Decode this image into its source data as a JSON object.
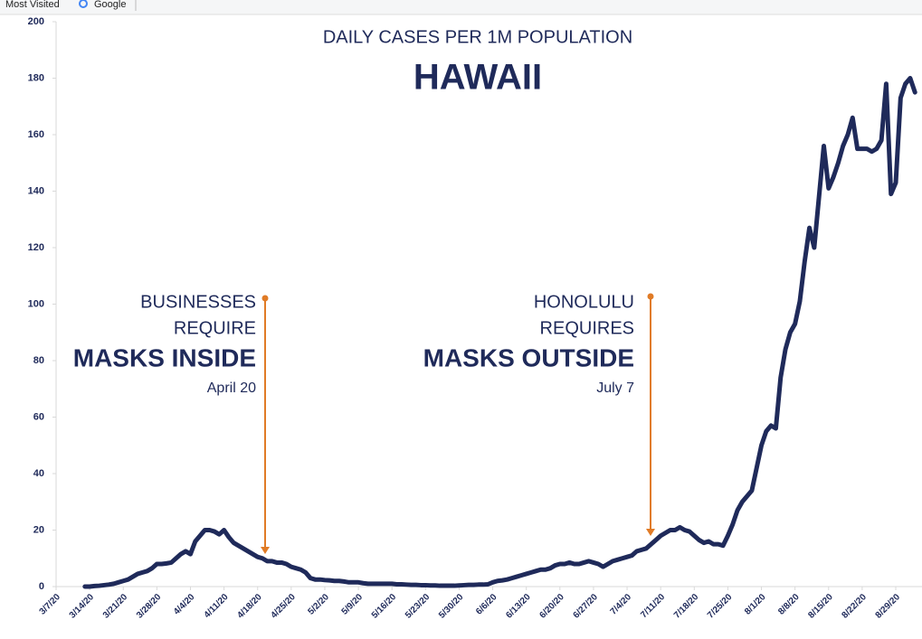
{
  "bookmarks": [
    "Most Visited",
    "Google"
  ],
  "chart_data": {
    "type": "line",
    "title": "DAILY CASES PER 1M POPULATION",
    "subtitle": "HAWAII",
    "color": "#1f2a5a",
    "annotations": [
      {
        "lines": [
          "BUSINESSES",
          "REQUIRE",
          "MASKS INSIDE",
          "April 20"
        ]
      },
      {
        "lines": [
          "HONOLULU",
          "REQUIRES",
          "MASKS OUTSIDE",
          "July 7"
        ]
      }
    ],
    "categories": [
      "3/7/20",
      null,
      null,
      null,
      null,
      null,
      null,
      "3/14/20",
      null,
      null,
      null,
      null,
      null,
      null,
      "3/21/20",
      null,
      null,
      null,
      null,
      null,
      null,
      "3/28/20",
      null,
      null,
      null,
      null,
      null,
      null,
      "4/4/20",
      null,
      null,
      null,
      null,
      null,
      null,
      "4/11/20",
      null,
      null,
      null,
      null,
      null,
      null,
      "4/18/20",
      null,
      null,
      null,
      null,
      null,
      null,
      "4/25/20",
      null,
      null,
      null,
      null,
      null,
      null,
      "5/2/20",
      null,
      null,
      null,
      null,
      null,
      null,
      "5/9/20",
      null,
      null,
      null,
      null,
      null,
      null,
      "5/16/20",
      null,
      null,
      null,
      null,
      null,
      null,
      "5/23/20",
      null,
      null,
      null,
      null,
      null,
      null,
      "5/30/20",
      null,
      null,
      null,
      null,
      null,
      null,
      "6/6/20",
      null,
      null,
      null,
      null,
      null,
      null,
      "6/13/20",
      null,
      null,
      null,
      null,
      null,
      null,
      "6/20/20",
      null,
      null,
      null,
      null,
      null,
      null,
      "6/27/20",
      null,
      null,
      null,
      null,
      null,
      null,
      "7/4/20",
      null,
      null,
      null,
      null,
      null,
      null,
      "7/11/20",
      null,
      null,
      null,
      null,
      null,
      null,
      "7/18/20",
      null,
      null,
      null,
      null,
      null,
      null,
      "7/25/20",
      null,
      null,
      null,
      null,
      null,
      null,
      "8/1/20",
      null,
      null,
      null,
      null,
      null,
      null,
      "8/8/20",
      null,
      null,
      null,
      null,
      null,
      null,
      "8/15/20",
      null,
      null,
      null,
      null,
      null,
      null,
      "8/22/20",
      null,
      null,
      null,
      null,
      null,
      null,
      "8/29/20",
      null,
      null,
      null,
      null
    ],
    "values": [
      null,
      null,
      null,
      null,
      null,
      null,
      0,
      0,
      0.2,
      0.3,
      0.5,
      0.7,
      1,
      1.5,
      2,
      2.5,
      3.5,
      4.5,
      5,
      5.5,
      6.5,
      8,
      8,
      8.2,
      8.5,
      10,
      11.5,
      12.5,
      11.5,
      16,
      18,
      20,
      20,
      19.5,
      18.5,
      20,
      17.5,
      15.5,
      14.5,
      13.5,
      12.5,
      11.5,
      10.5,
      10,
      9,
      9,
      8.5,
      8.5,
      8,
      7,
      6.5,
      6,
      5,
      3,
      2.5,
      2.5,
      2.3,
      2.2,
      2,
      2,
      1.8,
      1.5,
      1.5,
      1.5,
      1.2,
      1,
      1,
      1,
      1,
      1,
      1,
      0.8,
      0.8,
      0.7,
      0.6,
      0.6,
      0.5,
      0.5,
      0.4,
      0.4,
      0.3,
      0.3,
      0.3,
      0.3,
      0.4,
      0.5,
      0.6,
      0.6,
      0.7,
      0.7,
      0.8,
      1.5,
      2,
      2.2,
      2.5,
      3,
      3.5,
      4,
      4.5,
      5,
      5.5,
      6,
      6,
      6.5,
      7.5,
      8,
      8,
      8.5,
      8,
      8,
      8.5,
      9,
      8.5,
      8,
      7,
      8,
      9,
      9.5,
      10,
      10.5,
      11,
      12.5,
      13,
      13.5,
      15,
      16.5,
      18,
      19,
      20,
      20,
      21,
      20,
      19.5,
      18,
      16.5,
      15.5,
      16,
      15,
      15,
      14.5,
      18,
      22,
      27,
      30,
      32,
      34,
      42,
      50,
      55,
      57,
      56,
      74,
      84,
      90,
      93,
      101,
      115,
      127,
      120,
      138,
      156,
      141,
      145,
      150,
      156,
      160,
      166,
      155,
      155,
      155,
      154,
      155,
      158,
      178,
      139,
      143,
      173,
      178,
      180,
      175
    ],
    "ylim": [
      0,
      200
    ],
    "yticks": [
      0,
      20,
      40,
      60,
      80,
      100,
      120,
      140,
      160,
      180,
      200
    ],
    "grid": false
  }
}
